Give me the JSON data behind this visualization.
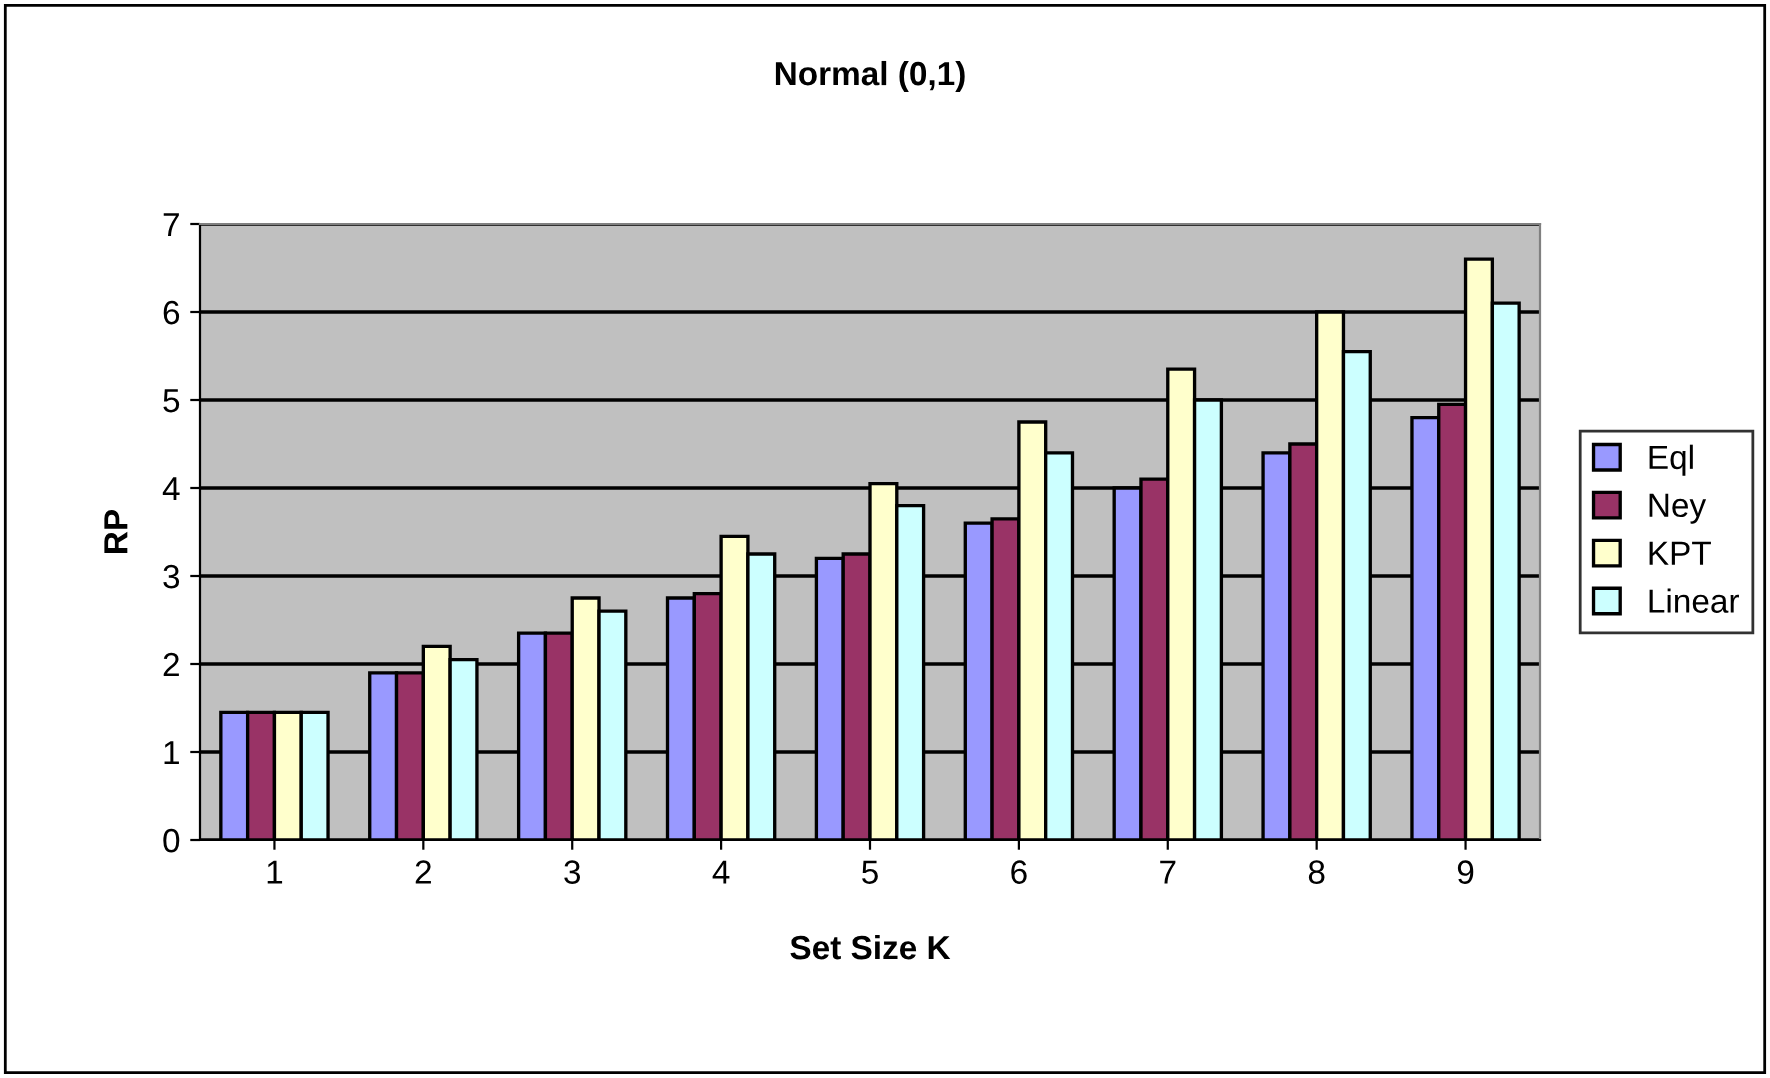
{
  "chart_data": {
    "type": "bar",
    "title": "Normal (0,1)",
    "xlabel": "Set Size K",
    "ylabel": "RP",
    "categories": [
      "1",
      "2",
      "3",
      "4",
      "5",
      "6",
      "7",
      "8",
      "9"
    ],
    "series": [
      {
        "name": "Eql",
        "color": "#9999ff",
        "values": [
          1.45,
          1.9,
          2.35,
          2.75,
          3.2,
          3.6,
          4.0,
          4.4,
          4.8
        ]
      },
      {
        "name": "Ney",
        "color": "#993366",
        "values": [
          1.45,
          1.9,
          2.35,
          2.8,
          3.25,
          3.65,
          4.1,
          4.5,
          4.95
        ]
      },
      {
        "name": "KPT",
        "color": "#ffffcc",
        "values": [
          1.45,
          2.2,
          2.75,
          3.45,
          4.05,
          4.75,
          5.35,
          6.0,
          6.6
        ]
      },
      {
        "name": "Linear",
        "color": "#ccffff",
        "values": [
          1.45,
          2.05,
          2.6,
          3.25,
          3.8,
          4.4,
          5.0,
          5.55,
          6.1
        ]
      }
    ],
    "ylim": [
      0,
      7
    ],
    "yticks": [
      0,
      1,
      2,
      3,
      4,
      5,
      6,
      7
    ],
    "grid": "y",
    "legend": "right"
  }
}
